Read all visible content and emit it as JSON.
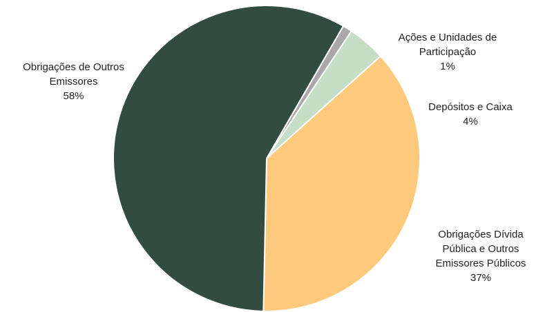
{
  "chart_data": {
    "type": "pie",
    "title": "",
    "start_angle_deg": -60,
    "direction": "clockwise",
    "slices": [
      {
        "name": "Ações e Unidades de Participação",
        "label_lines": [
          "Ações e Unidades de",
          "Participação"
        ],
        "value": 1,
        "value_label": "1%",
        "color": "#a9a7aa"
      },
      {
        "name": "Depósitos e Caixa",
        "label_lines": [
          "Depósitos e Caixa"
        ],
        "value": 4,
        "value_label": "4%",
        "color": "#c5ddc4"
      },
      {
        "name": "Obrigações Dívida Pública e Outros Emissores Públicos",
        "label_lines": [
          "Obrigações Dívida",
          "Pública e Outros",
          "Emissores Públicos"
        ],
        "value": 37,
        "value_label": "37%",
        "color": "#fdc97c"
      },
      {
        "name": "Obrigações de Outros Emissores",
        "label_lines": [
          "Obrigações de Outros",
          "Emissores"
        ],
        "value": 58,
        "value_label": "58%",
        "color": "#334c41"
      }
    ]
  }
}
